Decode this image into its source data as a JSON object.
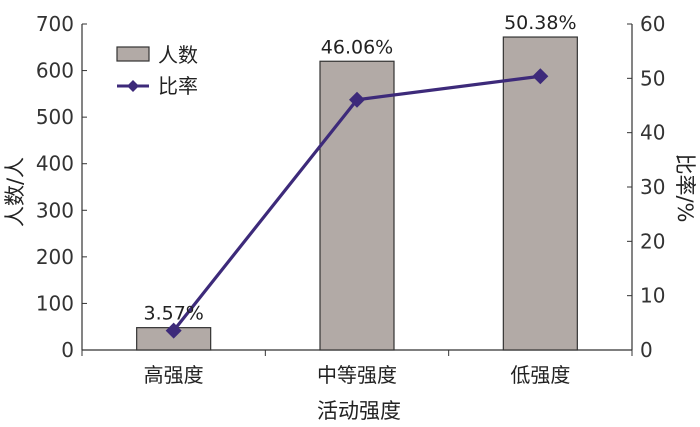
{
  "chart_data": {
    "type": "bar",
    "categories": [
      "高强度",
      "中等强度",
      "低强度"
    ],
    "xlabel": "活动强度",
    "ylabel": "人数/人",
    "y2label": "比率/%",
    "ylim": [
      0,
      700
    ],
    "y2lim": [
      0,
      60
    ],
    "yticks": [
      0,
      100,
      200,
      300,
      400,
      500,
      600,
      700
    ],
    "y2ticks": [
      0,
      10,
      20,
      30,
      40,
      50,
      60
    ],
    "grid": false,
    "legend_position": "top-left",
    "series": [
      {
        "name": "人数",
        "type": "bar",
        "axis": "left",
        "values": [
          48,
          620,
          672
        ],
        "color": "#b2aaa6"
      },
      {
        "name": "比率",
        "type": "line",
        "axis": "right",
        "values": [
          3.57,
          46.06,
          50.38
        ],
        "labels": [
          "3.57%",
          "46.06%",
          "50.38%"
        ],
        "color": "#3d2a7a"
      }
    ]
  }
}
